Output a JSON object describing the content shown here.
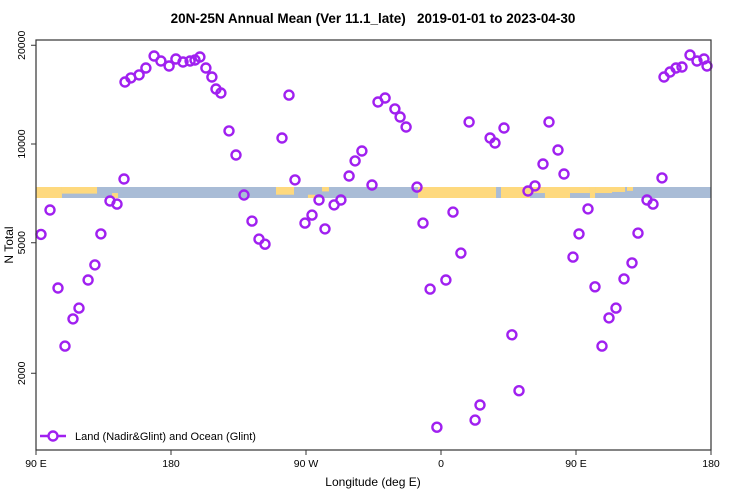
{
  "title": "20N-25N Annual Mean (Ver 11.1_late)   2019-01-01 to 2023-04-30",
  "legend": {
    "marker": "open-circle-with-line",
    "label": "Land (Nadir&Glint) and Ocean (Glint)"
  },
  "colors": {
    "marker": "#a020f0",
    "ocean_band": "#a9bcd6",
    "land_band": "#fed97e",
    "axis": "#333333"
  },
  "chart_data": {
    "type": "scatter",
    "title": "20N-25N Annual Mean (Ver 11.1_late)   2019-01-01 to 2023-04-30",
    "xlabel": "Longitude (deg E)",
    "ylabel": "N Total",
    "y_log_scale": true,
    "ylim": [
      1100,
      21000
    ],
    "x_axis_span_deg": 450,
    "x_ticks": [
      {
        "label": "90 E",
        "off": 0
      },
      {
        "label": "180",
        "off": 90
      },
      {
        "label": "90 W",
        "off": 180
      },
      {
        "label": "0",
        "off": 270
      },
      {
        "label": "90 E",
        "off": 360
      },
      {
        "label": "180",
        "off": 450
      }
    ],
    "y_ticks": [
      2000,
      5000,
      10000,
      20000
    ],
    "legend_entries": [
      "Land (Nadir&Glint) and Ocean (Glint)"
    ],
    "legend_position": "bottom-left",
    "grid": false,
    "map_strip": {
      "description": "thin world-map band 20N-25N drawn across plot near N=7200",
      "ocean_color": "#a9bcd6",
      "land_color": "#fed97e",
      "land_segments": [
        {
          "from": 0,
          "to": 17.3,
          "part": "full"
        },
        {
          "from": 17.3,
          "to": 40.7,
          "part": "top",
          "frac": 0.6
        },
        {
          "from": 50.7,
          "to": 54.7,
          "part": "bottom",
          "frac": 0.45
        },
        {
          "from": 160,
          "to": 172,
          "part": "top",
          "frac": 0.7
        },
        {
          "from": 181.3,
          "to": 186,
          "part": "bottom",
          "frac": 0.3
        },
        {
          "from": 190.7,
          "to": 195.3,
          "part": "top",
          "frac": 0.4
        },
        {
          "from": 254.7,
          "to": 306.7,
          "part": "full"
        },
        {
          "from": 310,
          "to": 329.3,
          "part": "full"
        },
        {
          "from": 329.3,
          "to": 339.3,
          "part": "top",
          "frac": 0.55
        },
        {
          "from": 339.3,
          "to": 356,
          "part": "full"
        },
        {
          "from": 356,
          "to": 369.3,
          "part": "top",
          "frac": 0.55
        },
        {
          "from": 369.3,
          "to": 372.7,
          "part": "full"
        },
        {
          "from": 372.7,
          "to": 384,
          "part": "top",
          "frac": 0.55
        },
        {
          "from": 384,
          "to": 392.7,
          "part": "top",
          "frac": 0.45
        },
        {
          "from": 394,
          "to": 398,
          "part": "top",
          "frac": 0.35
        }
      ]
    },
    "series": [
      {
        "name": "Land (Nadir&Glint) and Ocean (Glint)",
        "points_off_deg_vs_N": [
          [
            3.3,
            5300
          ],
          [
            9.3,
            6290
          ],
          [
            14.7,
            3640
          ],
          [
            19.3,
            2420
          ],
          [
            24.7,
            2930
          ],
          [
            28.7,
            3160
          ],
          [
            34.7,
            3850
          ],
          [
            39.3,
            4280
          ],
          [
            43.3,
            5320
          ],
          [
            49.3,
            6700
          ],
          [
            54,
            6560
          ],
          [
            58.7,
            7820
          ],
          [
            59.3,
            15450
          ],
          [
            63.3,
            15900
          ],
          [
            68.7,
            16240
          ],
          [
            73.3,
            17050
          ],
          [
            78.7,
            18550
          ],
          [
            83.3,
            17910
          ],
          [
            88.7,
            17290
          ],
          [
            93.3,
            18160
          ],
          [
            98,
            17780
          ],
          [
            102.7,
            17910
          ],
          [
            106,
            18040
          ],
          [
            109.3,
            18420
          ],
          [
            113.3,
            17050
          ],
          [
            117.3,
            16010
          ],
          [
            120,
            14710
          ],
          [
            123.3,
            14300
          ],
          [
            128.7,
            10960
          ],
          [
            133.3,
            9260
          ],
          [
            138.7,
            6990
          ],
          [
            144,
            5820
          ],
          [
            148.7,
            5130
          ],
          [
            152.7,
            4950
          ],
          [
            164,
            10430
          ],
          [
            168.7,
            14100
          ],
          [
            172.7,
            7770
          ],
          [
            179.3,
            5740
          ],
          [
            184,
            6070
          ],
          [
            188.7,
            6750
          ],
          [
            192.7,
            5510
          ],
          [
            198.7,
            6520
          ],
          [
            203.3,
            6750
          ],
          [
            208.7,
            7990
          ],
          [
            212.7,
            8880
          ],
          [
            217.3,
            9520
          ],
          [
            224,
            7500
          ],
          [
            228,
            13430
          ],
          [
            232.7,
            13810
          ],
          [
            239.3,
            12790
          ],
          [
            242.7,
            12090
          ],
          [
            246.7,
            11270
          ],
          [
            254,
            7390
          ],
          [
            258,
            5740
          ],
          [
            262.7,
            3610
          ],
          [
            267.3,
            1370
          ],
          [
            273.3,
            3850
          ],
          [
            278,
            6200
          ],
          [
            283.3,
            4650
          ],
          [
            288.7,
            11670
          ],
          [
            292.7,
            1440
          ],
          [
            296,
            1600
          ],
          [
            302.7,
            10430
          ],
          [
            306,
            10070
          ],
          [
            312,
            11190
          ],
          [
            317.3,
            2620
          ],
          [
            322,
            1770
          ],
          [
            328,
            7190
          ],
          [
            332.7,
            7450
          ],
          [
            338,
            8690
          ],
          [
            342,
            11670
          ],
          [
            348,
            9590
          ],
          [
            352,
            8100
          ],
          [
            358,
            4520
          ],
          [
            362,
            5320
          ],
          [
            368,
            6340
          ],
          [
            372.7,
            3670
          ],
          [
            377.3,
            2420
          ],
          [
            382,
            2950
          ],
          [
            386.7,
            3160
          ],
          [
            392,
            3880
          ],
          [
            397.3,
            4340
          ],
          [
            401.3,
            5350
          ],
          [
            407.3,
            6750
          ],
          [
            411.3,
            6560
          ],
          [
            417.3,
            7880
          ],
          [
            418.7,
            16010
          ],
          [
            422.7,
            16580
          ],
          [
            426.7,
            17050
          ],
          [
            430.7,
            17170
          ],
          [
            436,
            18680
          ],
          [
            440.7,
            17910
          ],
          [
            445.3,
            18160
          ],
          [
            447.3,
            17290
          ]
        ]
      }
    ]
  }
}
